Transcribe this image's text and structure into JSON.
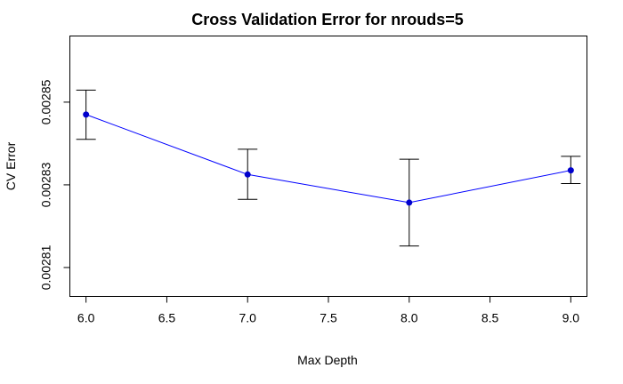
{
  "chart_data": {
    "type": "line",
    "title": "Cross Validation Error for nrouds=5",
    "xlabel": "Max Depth",
    "ylabel": "CV Error",
    "xlim": [
      5.9,
      9.1
    ],
    "ylim": [
      0.002803,
      0.002866
    ],
    "xticks": [
      6.0,
      6.5,
      7.0,
      7.5,
      8.0,
      8.5,
      9.0
    ],
    "xtick_labels": [
      "6.0",
      "6.5",
      "7.0",
      "7.5",
      "8.0",
      "8.5",
      "9.0"
    ],
    "yticks": [
      0.00281,
      0.00283,
      0.00285
    ],
    "ytick_labels": [
      "0.00281",
      "0.00283",
      "0.00285"
    ],
    "grid": false,
    "series": [
      {
        "x": [
          6,
          7,
          8,
          9
        ],
        "y": [
          0.002847,
          0.0028325,
          0.0028257,
          0.0028335
        ],
        "err_low": [
          0.002841,
          0.0028265,
          0.0028152,
          0.0028303
        ],
        "err_high": [
          0.0028529,
          0.0028386,
          0.0028362,
          0.0028369
        ],
        "line_color": "#0000ff",
        "point_color": "#0000cd"
      }
    ]
  }
}
